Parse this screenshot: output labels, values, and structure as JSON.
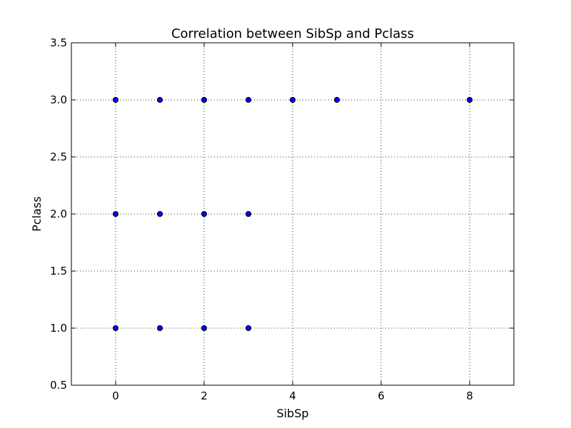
{
  "chart_data": {
    "type": "scatter",
    "title": "Correlation between SibSp and Pclass",
    "xlabel": "SibSp",
    "ylabel": "Pclass",
    "xlim": [
      -1,
      9
    ],
    "ylim": [
      0.5,
      3.5
    ],
    "xticks": [
      0,
      2,
      4,
      6,
      8
    ],
    "yticks": [
      0.5,
      1.0,
      1.5,
      2.0,
      2.5,
      3.0,
      3.5
    ],
    "grid": true,
    "marker_color": "#0000ff",
    "points": [
      {
        "x": 0,
        "y": 3.0
      },
      {
        "x": 1,
        "y": 3.0
      },
      {
        "x": 2,
        "y": 3.0
      },
      {
        "x": 3,
        "y": 3.0
      },
      {
        "x": 4,
        "y": 3.0
      },
      {
        "x": 5,
        "y": 3.0
      },
      {
        "x": 8,
        "y": 3.0
      },
      {
        "x": 0,
        "y": 2.0
      },
      {
        "x": 1,
        "y": 2.0
      },
      {
        "x": 2,
        "y": 2.0
      },
      {
        "x": 3,
        "y": 2.0
      },
      {
        "x": 0,
        "y": 1.0
      },
      {
        "x": 1,
        "y": 1.0
      },
      {
        "x": 2,
        "y": 1.0
      },
      {
        "x": 3,
        "y": 1.0
      }
    ]
  }
}
